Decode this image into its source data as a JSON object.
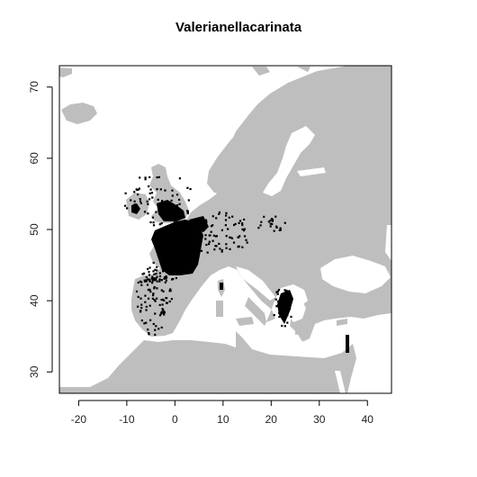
{
  "title": "Valerianellacarinata",
  "colors": {
    "land": "#bebebe",
    "occurrence": "#000000",
    "background": "#ffffff",
    "axis": "#000000"
  },
  "chart_data": {
    "type": "map",
    "title": "Valerianellacarinata",
    "xlim": [
      -24,
      45
    ],
    "ylim": [
      27,
      73
    ],
    "x_ticks": [
      -20,
      -10,
      0,
      10,
      20,
      30,
      40
    ],
    "y_ticks": [
      30,
      40,
      50,
      60,
      70
    ],
    "grid": false,
    "legend": "none"
  }
}
